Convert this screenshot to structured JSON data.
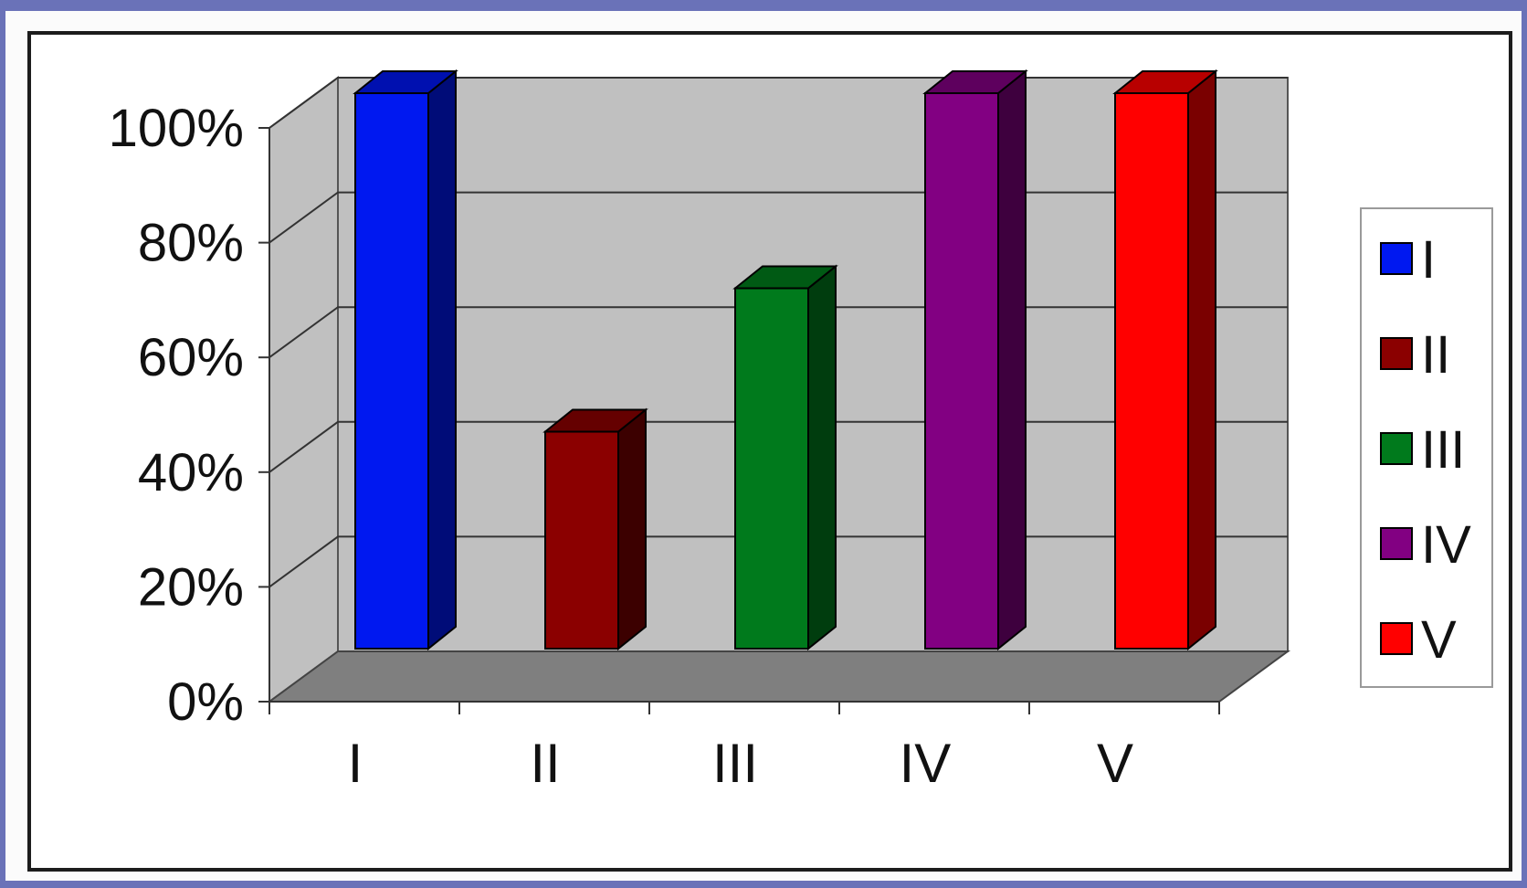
{
  "chart_data": {
    "type": "bar",
    "style": "3d-column",
    "categories": [
      "I",
      "II",
      "III",
      "IV",
      "V"
    ],
    "values": [
      1.0,
      0.41,
      0.66,
      1.0,
      1.0
    ],
    "yticks": [
      "100%",
      "80%",
      "60%",
      "40%",
      "20%",
      "0%"
    ],
    "ylim": [
      0,
      1
    ],
    "grid": true,
    "legend": {
      "position": "right",
      "entries": [
        "I",
        "II",
        "III",
        "IV",
        "V"
      ]
    },
    "colors": {
      "front": [
        "#0018f0",
        "#8b0000",
        "#007a1c",
        "#820082",
        "#ff0000"
      ],
      "side": [
        "#000c78",
        "#3c0000",
        "#003d0e",
        "#3e003e",
        "#7a0000"
      ],
      "top": [
        "#0010b0",
        "#650000",
        "#005a14",
        "#5e005e",
        "#b80000"
      ]
    },
    "back_wall_color": "#c0c0c0",
    "floor_color": "#7f7f7f"
  }
}
